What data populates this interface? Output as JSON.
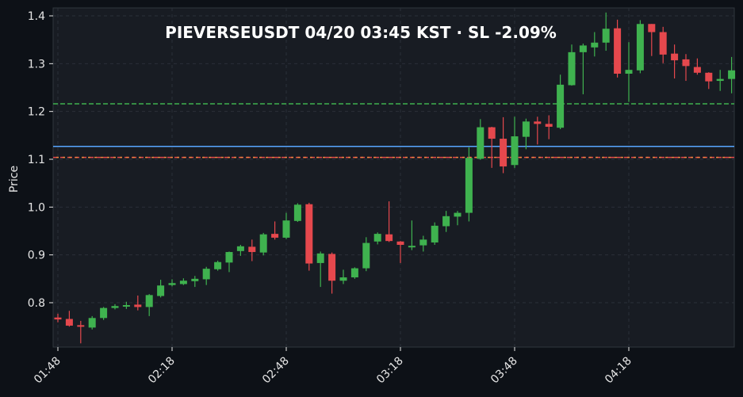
{
  "chart_data": {
    "type": "candlestick",
    "title": "PIEVERSEUSDT  04/20 03:45 KST  ·  SL -2.09%",
    "xlabel": "",
    "ylabel": "Price",
    "ylim": [
      0.705,
      1.41
    ],
    "yticks": [
      0.8,
      0.9,
      1.0,
      1.1,
      1.2,
      1.3,
      1.4
    ],
    "xticks": [
      {
        "label": "01:48",
        "index": 0
      },
      {
        "label": "02:18",
        "index": 10
      },
      {
        "label": "02:48",
        "index": 20
      },
      {
        "label": "03:18",
        "index": 30
      },
      {
        "label": "03:48",
        "index": 40
      },
      {
        "label": "04:18",
        "index": 50
      }
    ],
    "interval_minutes": 3,
    "grid": true,
    "colors": {
      "background": "#0d1117",
      "plot_background": "#181c23",
      "grid": "#2a2f38",
      "axis_text": "#e6e6e6",
      "up": "#3fb24f",
      "down": "#e5484d",
      "entry_line": "#58a6ff",
      "tp_line": "#3fb24f",
      "sl_line_a": "#e5484d",
      "sl_line_b": "#f0883e"
    },
    "levels": [
      {
        "name": "take-profit",
        "value": 1.216,
        "style": "dashed",
        "color": "#3fb24f"
      },
      {
        "name": "entry",
        "value": 1.127,
        "style": "solid",
        "color": "#58a6ff"
      },
      {
        "name": "stop-loss",
        "value": 1.104,
        "style": "dashed",
        "color": "#e5484d"
      },
      {
        "name": "stop-loss-alt",
        "value": 1.104,
        "style": "dashed",
        "color": "#f0883e"
      }
    ],
    "candles": [
      {
        "o": 0.769,
        "h": 0.777,
        "l": 0.759,
        "c": 0.765
      },
      {
        "o": 0.766,
        "h": 0.783,
        "l": 0.75,
        "c": 0.752
      },
      {
        "o": 0.753,
        "h": 0.762,
        "l": 0.715,
        "c": 0.75
      },
      {
        "o": 0.748,
        "h": 0.772,
        "l": 0.744,
        "c": 0.768
      },
      {
        "o": 0.768,
        "h": 0.791,
        "l": 0.764,
        "c": 0.789
      },
      {
        "o": 0.789,
        "h": 0.797,
        "l": 0.786,
        "c": 0.793
      },
      {
        "o": 0.792,
        "h": 0.802,
        "l": 0.787,
        "c": 0.795
      },
      {
        "o": 0.796,
        "h": 0.815,
        "l": 0.784,
        "c": 0.791
      },
      {
        "o": 0.791,
        "h": 0.818,
        "l": 0.772,
        "c": 0.816
      },
      {
        "o": 0.814,
        "h": 0.848,
        "l": 0.811,
        "c": 0.836
      },
      {
        "o": 0.837,
        "h": 0.849,
        "l": 0.834,
        "c": 0.841
      },
      {
        "o": 0.839,
        "h": 0.851,
        "l": 0.837,
        "c": 0.846
      },
      {
        "o": 0.845,
        "h": 0.856,
        "l": 0.833,
        "c": 0.85
      },
      {
        "o": 0.849,
        "h": 0.875,
        "l": 0.837,
        "c": 0.871
      },
      {
        "o": 0.87,
        "h": 0.888,
        "l": 0.867,
        "c": 0.885
      },
      {
        "o": 0.884,
        "h": 0.907,
        "l": 0.864,
        "c": 0.906
      },
      {
        "o": 0.908,
        "h": 0.921,
        "l": 0.898,
        "c": 0.918
      },
      {
        "o": 0.917,
        "h": 0.932,
        "l": 0.887,
        "c": 0.906
      },
      {
        "o": 0.905,
        "h": 0.946,
        "l": 0.899,
        "c": 0.943
      },
      {
        "o": 0.944,
        "h": 0.97,
        "l": 0.932,
        "c": 0.936
      },
      {
        "o": 0.936,
        "h": 0.988,
        "l": 0.933,
        "c": 0.972
      },
      {
        "o": 0.971,
        "h": 1.008,
        "l": 0.969,
        "c": 1.005
      },
      {
        "o": 1.006,
        "h": 1.009,
        "l": 0.867,
        "c": 0.882
      },
      {
        "o": 0.883,
        "h": 0.907,
        "l": 0.833,
        "c": 0.903
      },
      {
        "o": 0.902,
        "h": 0.905,
        "l": 0.819,
        "c": 0.846
      },
      {
        "o": 0.846,
        "h": 0.869,
        "l": 0.839,
        "c": 0.853
      },
      {
        "o": 0.853,
        "h": 0.874,
        "l": 0.85,
        "c": 0.872
      },
      {
        "o": 0.872,
        "h": 0.937,
        "l": 0.866,
        "c": 0.925
      },
      {
        "o": 0.928,
        "h": 0.947,
        "l": 0.922,
        "c": 0.944
      },
      {
        "o": 0.943,
        "h": 1.012,
        "l": 0.927,
        "c": 0.929
      },
      {
        "o": 0.928,
        "h": 0.929,
        "l": 0.883,
        "c": 0.921
      },
      {
        "o": 0.919,
        "h": 0.972,
        "l": 0.91,
        "c": 0.919
      },
      {
        "o": 0.92,
        "h": 0.94,
        "l": 0.907,
        "c": 0.932
      },
      {
        "o": 0.926,
        "h": 0.968,
        "l": 0.921,
        "c": 0.961
      },
      {
        "o": 0.96,
        "h": 0.992,
        "l": 0.948,
        "c": 0.981
      },
      {
        "o": 0.98,
        "h": 0.992,
        "l": 0.962,
        "c": 0.988
      },
      {
        "o": 0.988,
        "h": 1.125,
        "l": 0.97,
        "c": 1.103
      },
      {
        "o": 1.101,
        "h": 1.184,
        "l": 1.099,
        "c": 1.167
      },
      {
        "o": 1.167,
        "h": 1.168,
        "l": 1.082,
        "c": 1.143
      },
      {
        "o": 1.143,
        "h": 1.188,
        "l": 1.071,
        "c": 1.085
      },
      {
        "o": 1.088,
        "h": 1.189,
        "l": 1.082,
        "c": 1.148
      },
      {
        "o": 1.147,
        "h": 1.185,
        "l": 1.121,
        "c": 1.179
      },
      {
        "o": 1.179,
        "h": 1.189,
        "l": 1.131,
        "c": 1.174
      },
      {
        "o": 1.174,
        "h": 1.192,
        "l": 1.142,
        "c": 1.168
      },
      {
        "o": 1.166,
        "h": 1.277,
        "l": 1.163,
        "c": 1.256
      },
      {
        "o": 1.255,
        "h": 1.34,
        "l": 1.254,
        "c": 1.324
      },
      {
        "o": 1.324,
        "h": 1.342,
        "l": 1.236,
        "c": 1.338
      },
      {
        "o": 1.334,
        "h": 1.366,
        "l": 1.315,
        "c": 1.344
      },
      {
        "o": 1.344,
        "h": 1.407,
        "l": 1.327,
        "c": 1.373
      },
      {
        "o": 1.374,
        "h": 1.392,
        "l": 1.271,
        "c": 1.279
      },
      {
        "o": 1.279,
        "h": 1.345,
        "l": 1.22,
        "c": 1.287
      },
      {
        "o": 1.286,
        "h": 1.391,
        "l": 1.28,
        "c": 1.383
      },
      {
        "o": 1.383,
        "h": 1.383,
        "l": 1.316,
        "c": 1.366
      },
      {
        "o": 1.366,
        "h": 1.377,
        "l": 1.301,
        "c": 1.319
      },
      {
        "o": 1.321,
        "h": 1.34,
        "l": 1.269,
        "c": 1.307
      },
      {
        "o": 1.309,
        "h": 1.32,
        "l": 1.264,
        "c": 1.295
      },
      {
        "o": 1.293,
        "h": 1.311,
        "l": 1.277,
        "c": 1.281
      },
      {
        "o": 1.281,
        "h": 1.282,
        "l": 1.247,
        "c": 1.263
      },
      {
        "o": 1.264,
        "h": 1.287,
        "l": 1.243,
        "c": 1.268
      },
      {
        "o": 1.268,
        "h": 1.314,
        "l": 1.238,
        "c": 1.286
      }
    ]
  },
  "header": {
    "title": "PIEVERSEUSDT  04/20 03:45 KST  ·  SL -2.09%"
  }
}
